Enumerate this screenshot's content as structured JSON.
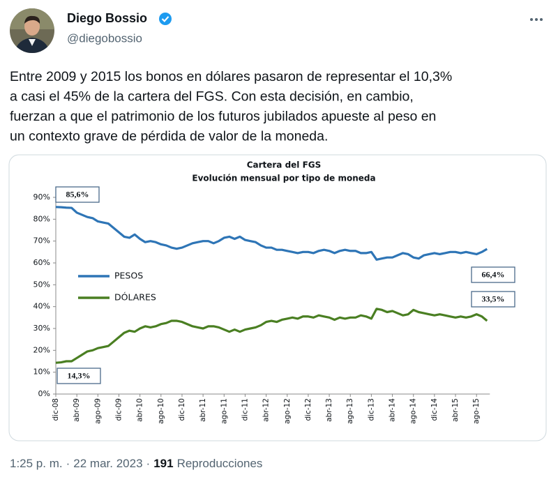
{
  "tweet": {
    "author": {
      "name": "Diego Bossio",
      "handle": "@diegobossio"
    },
    "text_lines": [
      "Entre 2009 y 2015 los bonos en dólares pasaron de representar el 10,3%",
      "a casi el 45% de la cartera del FGS. Con esta decisión, en cambio,",
      "fuerzan a que el patrimonio de los futuros jubilados apueste al peso en",
      "un contexto grave de pérdida de valor de la moneda."
    ],
    "footer": {
      "time": "1:25 p. m.",
      "separator": "·",
      "date": "22 mar. 2023",
      "views": "191",
      "views_label": "Reproducciones"
    }
  },
  "chart_data": {
    "type": "line",
    "title": "Cartera del FGS",
    "subtitle": "Evolución mensual por tipo de moneda",
    "categories": [
      "dic-08",
      null,
      null,
      null,
      "abr-09",
      null,
      null,
      null,
      "ago-09",
      null,
      null,
      null,
      "dic-09",
      null,
      null,
      null,
      "abr-10",
      null,
      null,
      null,
      "ago-10",
      null,
      null,
      null,
      "dic-10",
      null,
      null,
      null,
      "abr-11",
      null,
      null,
      null,
      "ago-11",
      null,
      null,
      null,
      "dic-11",
      null,
      null,
      null,
      "abr-12",
      null,
      null,
      null,
      "ago-12",
      null,
      null,
      null,
      "dic-12",
      null,
      null,
      null,
      "abr-13",
      null,
      null,
      null,
      "ago-13",
      null,
      null,
      null,
      "dic-13",
      null,
      null,
      null,
      "abr-14",
      null,
      null,
      null,
      "ago-14",
      null,
      null,
      null,
      "dic-14",
      null,
      null,
      null,
      "abr-15",
      null,
      null,
      null,
      "ago-15",
      null,
      null
    ],
    "series": [
      {
        "name": "PESOS",
        "color": "#2e75b6",
        "values": [
          85.6,
          85.5,
          85.3,
          85.2,
          83,
          82,
          81,
          80.5,
          79,
          78.5,
          78,
          76,
          74,
          72,
          71.5,
          73,
          71,
          69.5,
          70,
          69.5,
          68.5,
          68,
          67,
          66.5,
          67,
          68,
          69,
          69.5,
          70,
          70,
          69,
          70,
          71.5,
          72,
          71,
          72,
          70.5,
          70,
          69.5,
          68,
          67,
          67,
          66,
          66,
          65.5,
          65,
          64.5,
          65,
          65,
          64.5,
          65.5,
          66,
          65.5,
          64.5,
          65.5,
          66,
          65.5,
          65.5,
          64.5,
          64.5,
          65,
          61.5,
          62,
          62.5,
          62.5,
          63.5,
          64.5,
          64,
          62.5,
          62,
          63.5,
          64,
          64.5,
          64,
          64.5,
          65,
          65,
          64.5,
          65,
          64.5,
          64,
          65,
          66.4
        ]
      },
      {
        "name": "DÓLARES",
        "color": "#4a7f22",
        "values": [
          14.3,
          14.5,
          15,
          15,
          16.5,
          18,
          19.5,
          20,
          21,
          21.5,
          22,
          24,
          26,
          28,
          29,
          28.5,
          30,
          31,
          30.5,
          31,
          32,
          32.5,
          33.5,
          33.5,
          33,
          32,
          31,
          30.5,
          30,
          31,
          31,
          30.5,
          29.5,
          28.5,
          29.5,
          28.5,
          29.5,
          30,
          30.5,
          31.5,
          33,
          33.5,
          33,
          34,
          34.5,
          35,
          34.5,
          35.5,
          35.5,
          35,
          36,
          35.5,
          35,
          34,
          35,
          34.5,
          35,
          35,
          36,
          35.5,
          34.5,
          39,
          38.5,
          37.5,
          38,
          37,
          36,
          36.5,
          38.5,
          37.5,
          37,
          36.5,
          36,
          36.5,
          36,
          35.5,
          35,
          35.5,
          35,
          35.5,
          36.5,
          35.5,
          33.5
        ]
      }
    ],
    "annotations": [
      {
        "value": 85.6,
        "label": "85,6%"
      },
      {
        "value": 66.4,
        "label": "66,4%"
      },
      {
        "value": 33.5,
        "label": "33,5%"
      },
      {
        "value": 14.3,
        "label": "14,3%"
      }
    ],
    "ylim": [
      0,
      90
    ],
    "yticks": [
      {
        "value": 0,
        "label": "0%"
      },
      {
        "value": 10,
        "label": "10%"
      },
      {
        "value": 20,
        "label": "20%"
      },
      {
        "value": 30,
        "label": "30%"
      },
      {
        "value": 40,
        "label": "40%"
      },
      {
        "value": 50,
        "label": "50%"
      },
      {
        "value": 60,
        "label": "60%"
      },
      {
        "value": 70,
        "label": "70%"
      },
      {
        "value": 80,
        "label": "80%"
      },
      {
        "value": 90,
        "label": "90%"
      }
    ],
    "grid": false
  }
}
